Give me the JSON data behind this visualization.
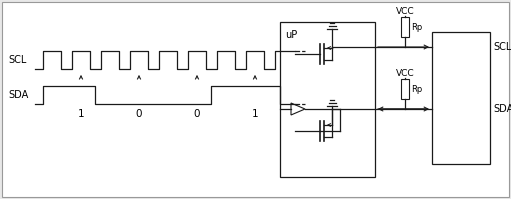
{
  "bg_color": "#e8e8e8",
  "inner_bg": "#ffffff",
  "line_color": "#1a1a1a",
  "text_color": "#000000",
  "scl_label": "SCL",
  "sda_label": "SDA",
  "bit_labels": [
    "1",
    "0",
    "0",
    "1"
  ],
  "up_label": "uP",
  "vcc_label": "VCC",
  "rp_label": "Rp",
  "scl_out_label": "SCL",
  "sda_out_label": "SDA",
  "figw": 5.11,
  "figh": 1.99,
  "dpi": 100
}
